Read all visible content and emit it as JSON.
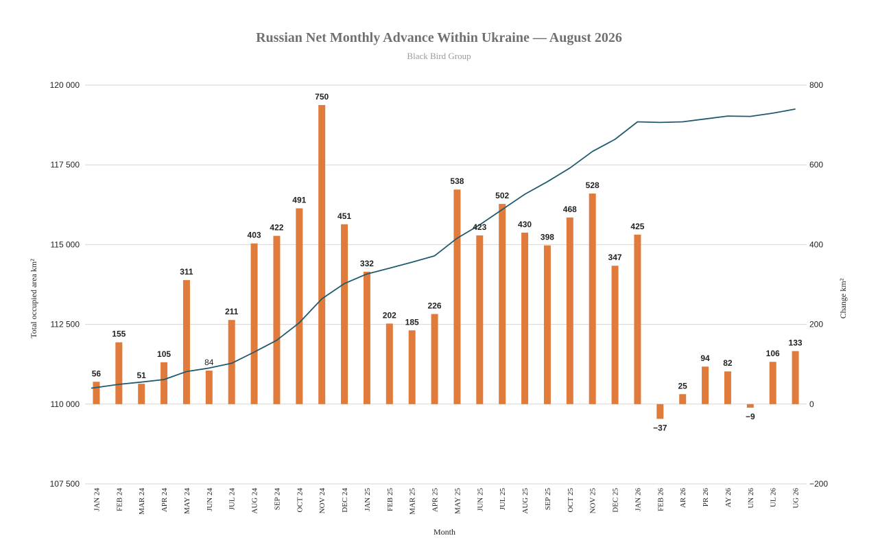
{
  "chart_data": {
    "type": "bar",
    "title": "Russian Net Monthly Advance Within Ukraine — August 2026",
    "subtitle": "Black Bird Group",
    "xlabel": "Month",
    "ylabel_left": "Total occupied area km²",
    "ylabel_right": "Change km²",
    "ylim_left": [
      107500,
      120000
    ],
    "ylim_right": [
      -200,
      800
    ],
    "yticks_left": [
      "107 500",
      "110 000",
      "112 500",
      "115 000",
      "117 500",
      "120 000"
    ],
    "yticks_right": [
      "−200",
      "0",
      "200",
      "400",
      "600",
      "800"
    ],
    "categories": [
      "JAN 24",
      "FEB 24",
      "MAR 24",
      "APR 24",
      "MAY 24",
      "JUN 24",
      "JUL 24",
      "AUG 24",
      "SEP 24",
      "OCT 24",
      "NOV 24",
      "DEC 24",
      "JAN 25",
      "FEB 25",
      "MAR 25",
      "APR 25",
      "MAY 25",
      "JUN 25",
      "JUL 25",
      "AUG 25",
      "SEP 25",
      "OCT 25",
      "NOV 25",
      "DEC 25",
      "JAN 26",
      "FEB 26",
      "AR 26",
      "PR 26",
      "AY 26",
      "UN 26",
      "UL 26",
      "UG 26"
    ],
    "series": [
      {
        "values": [
          56,
          155,
          51,
          105,
          311,
          84,
          211,
          403,
          422,
          491,
          750,
          451,
          332,
          202,
          185,
          226,
          538,
          423,
          502,
          430,
          398,
          468,
          528,
          347,
          425,
          -37,
          25,
          94,
          82,
          -9,
          106,
          133
        ],
        "value_labels": [
          "56",
          "155",
          "51",
          "105",
          "311",
          "84",
          "211",
          "403",
          "422",
          "491",
          "750",
          "451",
          "332",
          "202",
          "185",
          "226",
          "538",
          "423",
          "502",
          "430",
          "398",
          "468",
          "528",
          "347",
          "425",
          "−37",
          "25",
          "94",
          "82",
          "−9",
          "106",
          "133"
        ],
        "color": "#e07b3c",
        "axis": "right"
      },
      {
        "type": "line",
        "axis": "left",
        "color": "#1f5a6e",
        "x": [
          "JAN 24",
          "FEB 24",
          "MAR 24",
          "APR 24",
          "MAY 24",
          "JUN 24",
          "JUL 24",
          "AUG 24",
          "SEP 24",
          "OCT 24",
          "NOV 24",
          "DEC 24",
          "JAN 25",
          "FEB 25",
          "MAR 25",
          "APR 25",
          "MAY 25",
          "JUN 25",
          "JUL 25",
          "AUG 25",
          "SEP 25",
          "OCT 25",
          "NOV 25",
          "DEC 25",
          "JAN 26",
          "FEB 26",
          "AR 26",
          "PR 26",
          "AY 26",
          "UN 26",
          "UL 26",
          "UG 26"
        ],
        "values": [
          110500,
          110620,
          110690,
          110770,
          111020,
          111130,
          111280,
          111630,
          112000,
          112550,
          113300,
          113780,
          114080,
          114260,
          114450,
          114650,
          115200,
          115620,
          116100,
          116580,
          116970,
          117400,
          117920,
          118300,
          118850,
          118830,
          118850,
          118940,
          119030,
          119020,
          119120,
          119250
        ]
      }
    ],
    "legend": "none",
    "grid": true
  }
}
